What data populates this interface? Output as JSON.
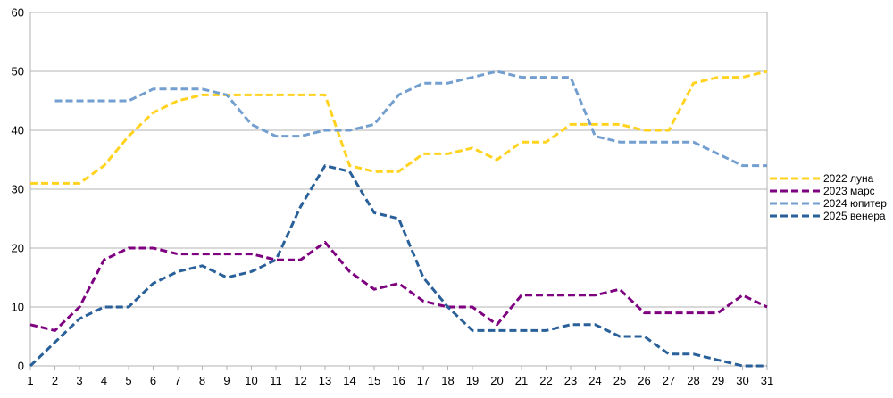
{
  "chart_data": {
    "type": "line",
    "title": "",
    "xlabel": "",
    "ylabel": "",
    "x": [
      1,
      2,
      3,
      4,
      5,
      6,
      7,
      8,
      9,
      10,
      11,
      12,
      13,
      14,
      15,
      16,
      17,
      18,
      19,
      20,
      21,
      22,
      23,
      24,
      25,
      26,
      27,
      28,
      29,
      30,
      31
    ],
    "xlim": [
      1,
      31
    ],
    "ylim": [
      0,
      60
    ],
    "yticks": [
      0,
      10,
      20,
      30,
      40,
      50,
      60
    ],
    "grid": "horizontal",
    "legend_position": "right",
    "line_style": "dashed",
    "series": [
      {
        "name": "2022 луна",
        "color": "#ffd320",
        "values": [
          31,
          31,
          31,
          34,
          39,
          43,
          45,
          46,
          46,
          46,
          46,
          46,
          46,
          34,
          33,
          33,
          36,
          36,
          37,
          35,
          38,
          38,
          41,
          41,
          41,
          40,
          40,
          48,
          49,
          49,
          50
        ]
      },
      {
        "name": "2023 марс",
        "color": "#7e0080",
        "values": [
          7,
          6,
          10,
          18,
          20,
          20,
          19,
          19,
          19,
          19,
          18,
          18,
          21,
          16,
          13,
          14,
          11,
          10,
          10,
          7,
          12,
          12,
          12,
          12,
          13,
          9,
          9,
          9,
          9,
          12,
          10
        ]
      },
      {
        "name": "2024 юпитер",
        "color": "#729fcf",
        "values": [
          null,
          45,
          45,
          45,
          45,
          47,
          47,
          47,
          46,
          41,
          39,
          39,
          40,
          40,
          41,
          46,
          48,
          48,
          49,
          50,
          49,
          49,
          49,
          39,
          38,
          38,
          38,
          38,
          36,
          34,
          34
        ]
      },
      {
        "name": "2025 венера",
        "color": "#2a6099",
        "values": [
          0,
          4,
          8,
          10,
          10,
          14,
          16,
          17,
          15,
          16,
          18,
          27,
          34,
          33,
          26,
          25,
          15,
          10,
          6,
          6,
          6,
          6,
          7,
          7,
          5,
          5,
          2,
          2,
          1,
          0,
          0
        ]
      }
    ]
  }
}
